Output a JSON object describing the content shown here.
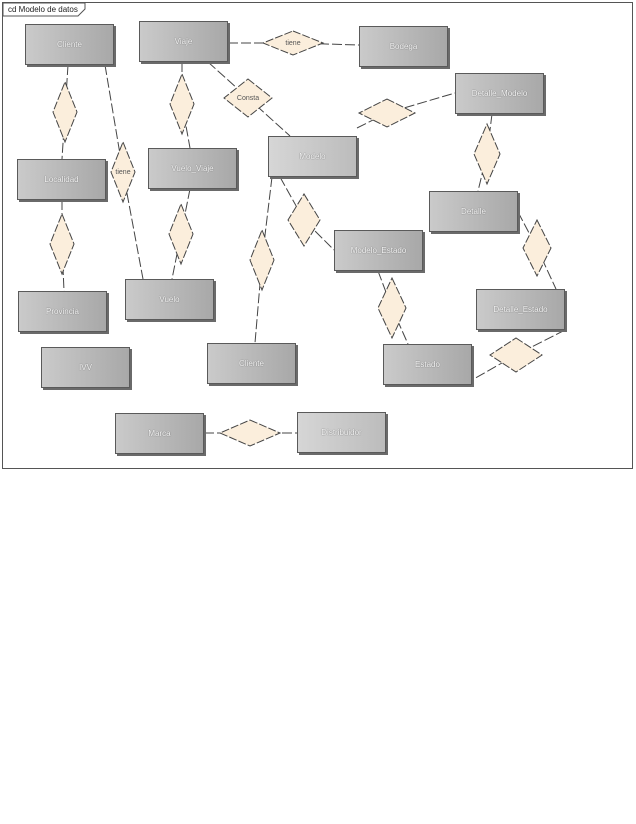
{
  "diagram": {
    "title": "cd Modelo de datos"
  },
  "entities": [
    {
      "id": "e1",
      "label": "Cliente"
    },
    {
      "id": "e2",
      "label": "Viaje"
    },
    {
      "id": "e3",
      "label": "Bodega"
    },
    {
      "id": "e4",
      "label": "Detalle_Modelo"
    },
    {
      "id": "e5",
      "label": "Localidad"
    },
    {
      "id": "e6",
      "label": "Vuelo_Viaje"
    },
    {
      "id": "e7",
      "label": "Modelo"
    },
    {
      "id": "e8",
      "label": "Detalle"
    },
    {
      "id": "e9",
      "label": "Modelo_Estado"
    },
    {
      "id": "e10",
      "label": "Provincia"
    },
    {
      "id": "e11",
      "label": "Vuelo"
    },
    {
      "id": "e12",
      "label": "Detalle_Estado"
    },
    {
      "id": "e13",
      "label": "IVV"
    },
    {
      "id": "e14",
      "label": "Cliente"
    },
    {
      "id": "e15",
      "label": "Estado"
    },
    {
      "id": "e16",
      "label": "Marca"
    },
    {
      "id": "e17",
      "label": "Distribuidor"
    }
  ],
  "relationships": [
    {
      "id": "r1",
      "label": "tiene"
    },
    {
      "id": "r2",
      "label": ""
    },
    {
      "id": "r3",
      "label": "tiene"
    },
    {
      "id": "r4",
      "label": ""
    },
    {
      "id": "r5",
      "label": "Consta"
    },
    {
      "id": "r6",
      "label": ""
    },
    {
      "id": "r7",
      "label": ""
    },
    {
      "id": "r8",
      "label": ""
    },
    {
      "id": "r9",
      "label": ""
    },
    {
      "id": "r10",
      "label": ""
    },
    {
      "id": "r11",
      "label": ""
    },
    {
      "id": "r12",
      "label": ""
    },
    {
      "id": "r13",
      "label": ""
    },
    {
      "id": "r14",
      "label": ""
    },
    {
      "id": "r15",
      "label": ""
    }
  ],
  "colors": {
    "relationship_fill": "#fbeedc",
    "line": "#444444"
  }
}
